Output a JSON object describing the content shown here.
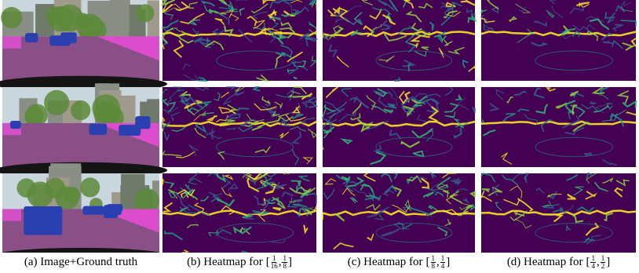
{
  "captions": [
    {
      "label": "(a) Image+Ground truth"
    },
    {
      "label": "(b) Heatmap for",
      "left": "[",
      "sep": ",",
      "right": "]",
      "fractions": [
        {
          "num": "1",
          "den": "16"
        },
        {
          "num": "1",
          "den": "8"
        }
      ]
    },
    {
      "label": "(c) Heatmap for",
      "left": "[",
      "sep": ",",
      "right": "]",
      "fractions": [
        {
          "num": "1",
          "den": "8"
        },
        {
          "num": "1",
          "den": "4"
        }
      ]
    },
    {
      "label": "(d) Heatmap for",
      "left": "[",
      "sep": ",",
      "right": "]",
      "fractions": [
        {
          "num": "1",
          "den": "4"
        },
        {
          "num": "1",
          "den": "2"
        }
      ]
    }
  ]
}
